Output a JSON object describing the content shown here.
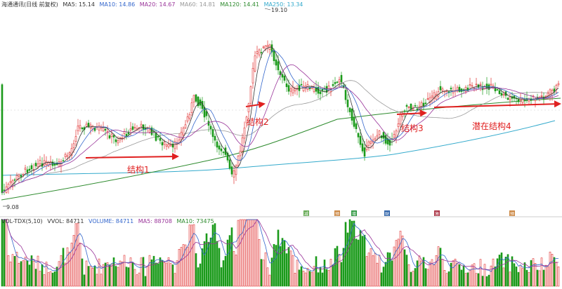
{
  "chart_data": {
    "type": "candlestick",
    "main_legend": {
      "title": "海通通讯(日线 前复权)",
      "items": [
        {
          "label": "MA5",
          "value": "15.14",
          "color": "#333333"
        },
        {
          "label": "MA10",
          "value": "14.86",
          "color": "#3366cc"
        },
        {
          "label": "MA20",
          "value": "14.67",
          "color": "#993399"
        },
        {
          "label": "MA60",
          "value": "14.81",
          "color": "#999999"
        },
        {
          "label": "MA120",
          "value": "14.41",
          "color": "#2e8b2e"
        },
        {
          "label": "MA250",
          "value": "13.34",
          "color": "#33aacc"
        }
      ]
    },
    "volume_legend": {
      "title": "VOL-TDX(5,10)",
      "items": [
        {
          "label": "VVOL",
          "value": "84711",
          "color": "#333333"
        },
        {
          "label": "VOLUME",
          "value": "84711",
          "color": "#3366cc"
        },
        {
          "label": "MA5",
          "value": "88708",
          "color": "#993399"
        },
        {
          "label": "MA10",
          "value": "73475",
          "color": "#2e8b2e"
        }
      ]
    },
    "price_range": [
      9.08,
      19.1
    ],
    "high_label": "19.10",
    "low_label": "9.08",
    "annotations": [
      "结构1",
      "结构2",
      "结构3",
      "潜在结构4"
    ],
    "event_markers": [
      "减",
      "预",
      "增",
      "财",
      "激",
      "预"
    ],
    "up_color": "#e03030",
    "down_color": "#1a9a1a"
  }
}
